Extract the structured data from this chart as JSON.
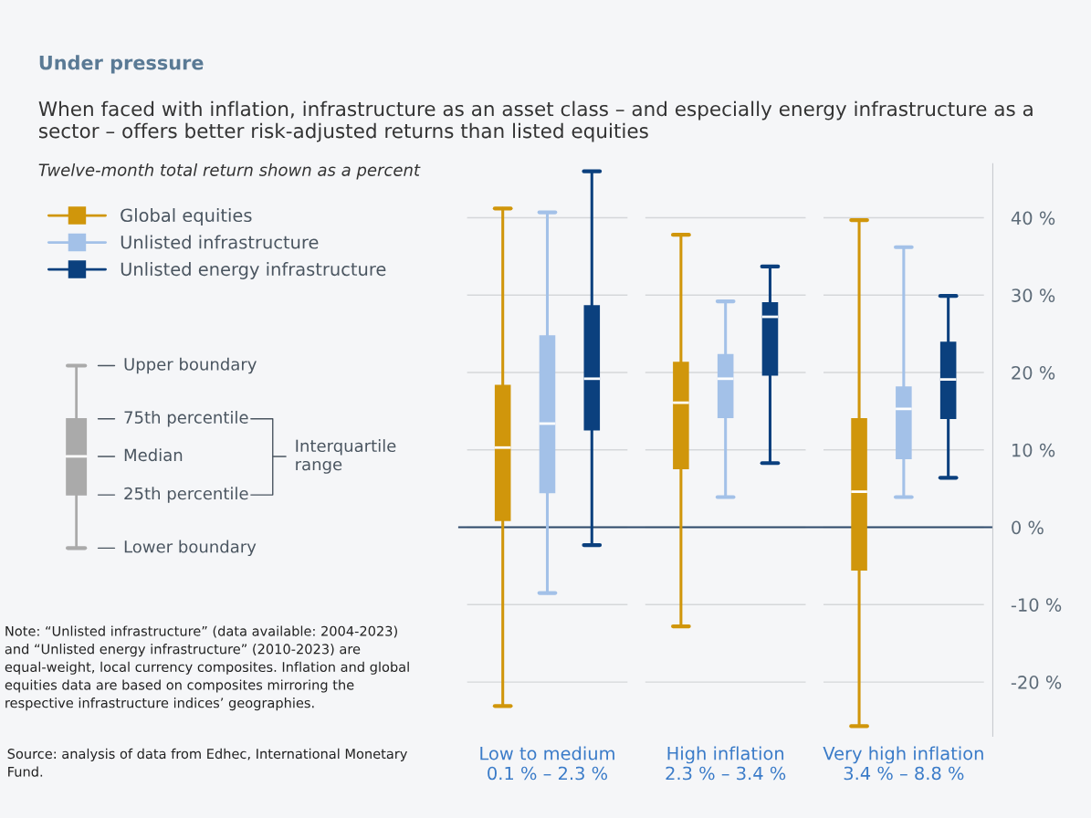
{
  "chart_data": {
    "type": "box",
    "title": "Under pressure",
    "subtitle": "When faced with inflation, infrastructure as an asset class – and especially energy infrastructure as a sector – offers better risk-adjusted returns than listed equities",
    "ylabel": "Twelve-month total return shown as a percent",
    "categories": [
      "Low to medium\n0.1 % – 2.3 %",
      "High inflation\n2.3 % – 3.4 %",
      "Very high inflation\n3.4 % – 8.8 %"
    ],
    "series": [
      {
        "name": "Global equities",
        "color": "#d0960b",
        "boxes": [
          {
            "low": -23.1,
            "q1": 0.8,
            "median": 10.3,
            "q3": 18.4,
            "high": 41.2
          },
          {
            "low": -12.8,
            "q1": 7.5,
            "median": 16.1,
            "q3": 21.4,
            "high": 37.8
          },
          {
            "low": -25.7,
            "q1": -5.6,
            "median": 4.6,
            "q3": 14.1,
            "high": 39.7
          }
        ]
      },
      {
        "name": "Unlisted infrastructure",
        "color": "#a3c1e8",
        "boxes": [
          {
            "low": -8.5,
            "q1": 4.4,
            "median": 13.4,
            "q3": 24.8,
            "high": 40.7
          },
          {
            "low": 3.9,
            "q1": 14.1,
            "median": 19.2,
            "q3": 22.4,
            "high": 29.2
          },
          {
            "low": 3.9,
            "q1": 8.8,
            "median": 15.3,
            "q3": 18.2,
            "high": 36.2
          }
        ]
      },
      {
        "name": "Unlisted energy infrastructure",
        "color": "#0b407e",
        "boxes": [
          {
            "low": -2.3,
            "q1": 12.5,
            "median": 19.2,
            "q3": 28.7,
            "high": 46.0
          },
          {
            "low": 8.3,
            "q1": 19.6,
            "median": 27.2,
            "q3": 29.1,
            "high": 33.7
          },
          {
            "low": 6.4,
            "q1": 14.0,
            "median": 19.1,
            "q3": 24.0,
            "high": 29.9
          }
        ]
      }
    ],
    "ylim": [
      -27,
      47
    ],
    "yticks": [
      {
        "value": -20,
        "label": "-20 %"
      },
      {
        "value": -10,
        "label": "-10 %"
      },
      {
        "value": 0,
        "label": "0 %"
      },
      {
        "value": 10,
        "label": "10 %"
      },
      {
        "value": 20,
        "label": "20 %"
      },
      {
        "value": 30,
        "label": "30 %"
      },
      {
        "value": 40,
        "label": "40 %"
      }
    ],
    "grid": "y",
    "legend": "top left",
    "ref_lines": [
      {
        "axis": "y",
        "value": 0,
        "color": "#2e4a6b"
      }
    ],
    "annotations": [
      "Upper boundary",
      "75th percentile",
      "Median",
      "25th percentile",
      "Lower boundary",
      "Interquartile range",
      "Note: “Unlisted infrastructure” (data available: 2004-2023) and “Unlisted energy infrastructure” (2010-2023) are equal-weight, local currency composites. Inflation and global equities data are based on composites mirroring the respective infrastructure indices’ geographies.",
      "Source: analysis of data from Edhec, International Monetary Fund."
    ]
  }
}
